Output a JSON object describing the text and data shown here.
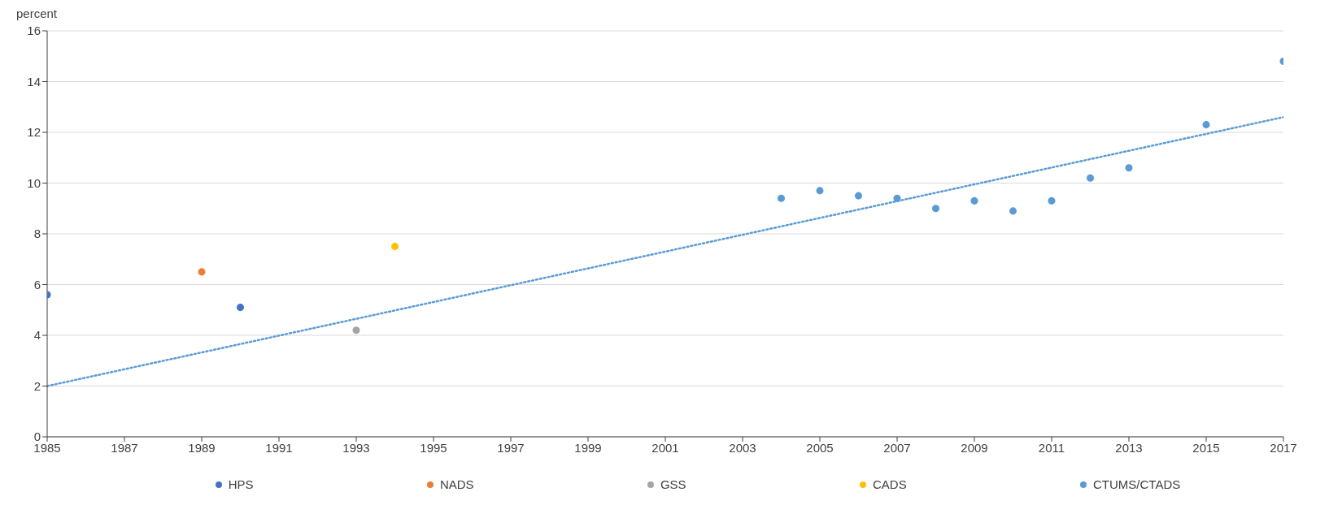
{
  "chart_data": {
    "type": "scatter",
    "ylabel": "percent",
    "xlim": [
      1985,
      2017
    ],
    "xticks": [
      1985,
      1987,
      1989,
      1991,
      1993,
      1995,
      1997,
      1999,
      2001,
      2003,
      2005,
      2007,
      2009,
      2011,
      2013,
      2015,
      2017
    ],
    "ylim": [
      0,
      16
    ],
    "yticks": [
      0,
      2,
      4,
      6,
      8,
      10,
      12,
      14,
      16
    ],
    "grid": "y",
    "legend": "bottom",
    "marker": "circle",
    "series": [
      {
        "name": "HPS",
        "color": "#4472c4",
        "x": [
          1985,
          1990
        ],
        "values": [
          5.6,
          5.1
        ]
      },
      {
        "name": "NADS",
        "color": "#ed7d31",
        "x": [
          1989
        ],
        "values": [
          6.5
        ]
      },
      {
        "name": "GSS",
        "color": "#a5a5a5",
        "x": [
          1993
        ],
        "values": [
          4.2
        ]
      },
      {
        "name": "CADS",
        "color": "#ffc000",
        "x": [
          1994
        ],
        "values": [
          7.5
        ]
      },
      {
        "name": "CTUMS/CTADS",
        "color": "#5b9bd5",
        "x": [
          2004,
          2005,
          2006,
          2007,
          2008,
          2009,
          2010,
          2011,
          2012,
          2013,
          2015,
          2017
        ],
        "values": [
          9.4,
          9.7,
          9.5,
          9.4,
          9.0,
          9.3,
          8.9,
          9.3,
          10.2,
          10.6,
          12.3,
          14.8
        ]
      },
      {
        "type": "line",
        "color": "#5b9bd5",
        "line_style": "dotted",
        "marker": "none",
        "x": [
          1985,
          2017
        ],
        "values": [
          2.0,
          12.6
        ]
      }
    ]
  }
}
